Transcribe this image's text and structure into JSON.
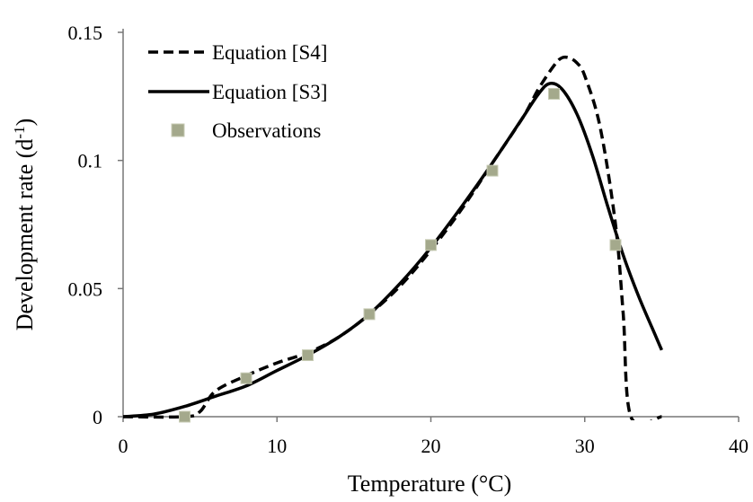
{
  "chart_data": {
    "type": "line",
    "title": "",
    "xlabel": "Temperature (°C)",
    "ylabel_main": "Development rate (d",
    "ylabel_sup": "-1",
    "ylabel_end": ")",
    "xlim": [
      0,
      40
    ],
    "ylim": [
      0,
      0.15
    ],
    "x_ticks": [
      0,
      10,
      20,
      30,
      40
    ],
    "x_tick_labels": [
      "0",
      "10",
      "20",
      "30",
      "40"
    ],
    "y_ticks": [
      0,
      0.05,
      0.1,
      0.15
    ],
    "y_tick_labels": [
      "0",
      "0.05",
      "0.1",
      "0.15"
    ],
    "grid": false,
    "legend_position": "top-left",
    "series": [
      {
        "name": "Equation [S4]",
        "style": "dashed",
        "color": "#000000",
        "points": [
          [
            0,
            0
          ],
          [
            4,
            0
          ],
          [
            5,
            0.002
          ],
          [
            6,
            0.01
          ],
          [
            8,
            0.016
          ],
          [
            10,
            0.021
          ],
          [
            12,
            0.025
          ],
          [
            14,
            0.031
          ],
          [
            16,
            0.04
          ],
          [
            18,
            0.051
          ],
          [
            20,
            0.065
          ],
          [
            22,
            0.081
          ],
          [
            24,
            0.099
          ],
          [
            26,
            0.117
          ],
          [
            27,
            0.128
          ],
          [
            28,
            0.137
          ],
          [
            28.5,
            0.14
          ],
          [
            29,
            0.14
          ],
          [
            29.5,
            0.138
          ],
          [
            30,
            0.133
          ],
          [
            31,
            0.113
          ],
          [
            32,
            0.075
          ],
          [
            32.5,
            0.04
          ],
          [
            33,
            0
          ],
          [
            35,
            0
          ]
        ]
      },
      {
        "name": "Equation [S3]",
        "style": "solid",
        "color": "#000000",
        "points": [
          [
            0,
            0
          ],
          [
            2,
            0.001
          ],
          [
            4,
            0.004
          ],
          [
            6,
            0.008
          ],
          [
            8,
            0.012
          ],
          [
            10,
            0.018
          ],
          [
            12,
            0.024
          ],
          [
            14,
            0.031
          ],
          [
            16,
            0.04
          ],
          [
            18,
            0.052
          ],
          [
            20,
            0.066
          ],
          [
            22,
            0.082
          ],
          [
            24,
            0.099
          ],
          [
            26,
            0.117
          ],
          [
            27,
            0.126
          ],
          [
            27.7,
            0.13
          ],
          [
            28.5,
            0.128
          ],
          [
            29.5,
            0.118
          ],
          [
            30.5,
            0.102
          ],
          [
            31.5,
            0.082
          ],
          [
            32.5,
            0.063
          ],
          [
            33.5,
            0.047
          ],
          [
            34.5,
            0.033
          ],
          [
            35,
            0.026
          ]
        ]
      },
      {
        "name": "Observations",
        "style": "markers",
        "color": "#a4a98c",
        "marker": "square",
        "points": [
          [
            4,
            0
          ],
          [
            8,
            0.015
          ],
          [
            12,
            0.024
          ],
          [
            16,
            0.04
          ],
          [
            20,
            0.067
          ],
          [
            24,
            0.096
          ],
          [
            28,
            0.126
          ],
          [
            32,
            0.067
          ]
        ]
      }
    ]
  }
}
